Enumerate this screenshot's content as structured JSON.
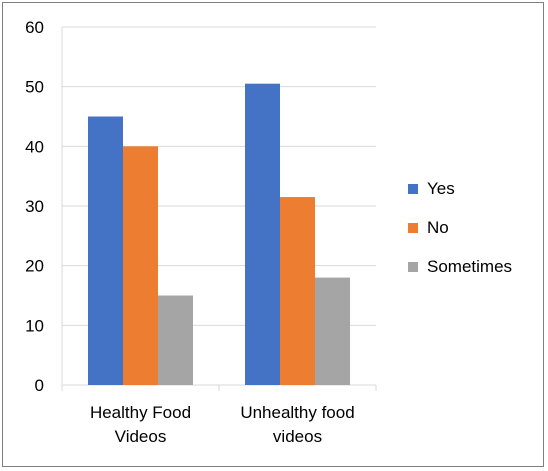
{
  "chart_data": {
    "type": "bar",
    "categories": [
      "Healthy Food Videos",
      "Unhealthy food videos"
    ],
    "category_lines": [
      [
        "Healthy Food",
        "Videos"
      ],
      [
        "Unhealthy food",
        "videos"
      ]
    ],
    "series": [
      {
        "name": "Yes",
        "values": [
          45,
          50.5
        ],
        "color": "#4472C4"
      },
      {
        "name": "No",
        "values": [
          40,
          31.5
        ],
        "color": "#ED7D31"
      },
      {
        "name": "Sometimes",
        "values": [
          15,
          18
        ],
        "color": "#A5A5A5"
      }
    ],
    "ylim": [
      0,
      60
    ],
    "yticks": [
      0,
      10,
      20,
      30,
      40,
      50,
      60
    ],
    "grid": true,
    "gridline_color": "#d9d9d9",
    "legend_position": "right",
    "title": "",
    "xlabel": "",
    "ylabel": ""
  }
}
